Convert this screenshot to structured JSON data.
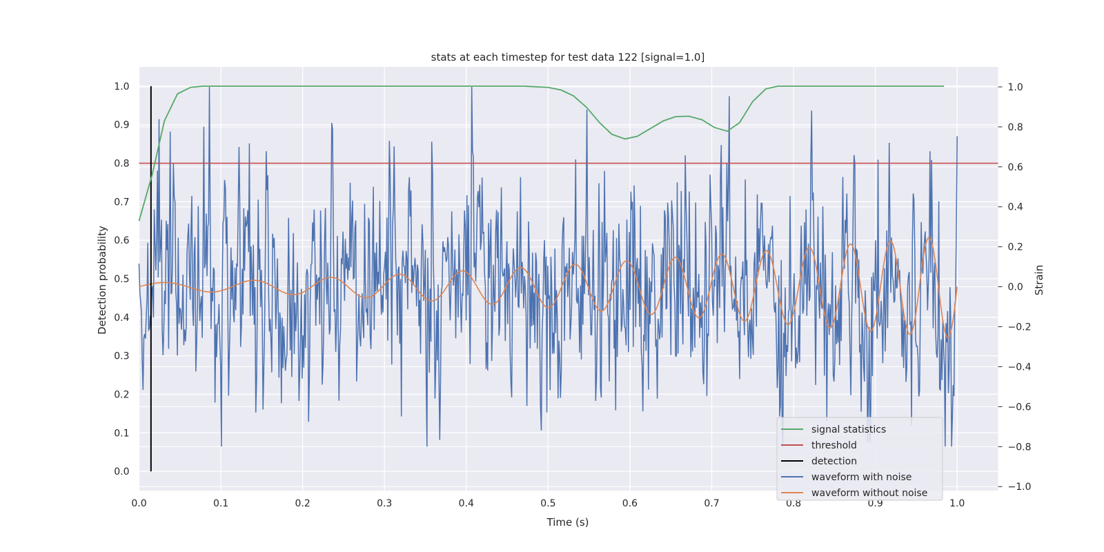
{
  "chart_data": {
    "type": "line",
    "title": "stats at each timestep for test data 122 [signal=1.0]",
    "xlabel": "Time (s)",
    "ylabel_left": "Detection probability",
    "ylabel_right": "Strain",
    "xlim": [
      0.0,
      1.05
    ],
    "ylim_left": [
      -0.05,
      1.05
    ],
    "ylim_right": [
      -1.02,
      1.1
    ],
    "x_ticks": [
      "0.0",
      "0.1",
      "0.2",
      "0.3",
      "0.4",
      "0.5",
      "0.6",
      "0.7",
      "0.8",
      "0.9",
      "1.0"
    ],
    "y_left_ticks": [
      "0.0",
      "0.1",
      "0.2",
      "0.3",
      "0.4",
      "0.5",
      "0.6",
      "0.7",
      "0.8",
      "0.9",
      "1.0"
    ],
    "y_right_ticks": [
      "−1.0",
      "−0.8",
      "−0.6",
      "−0.4",
      "−0.2",
      "0.0",
      "0.2",
      "0.4",
      "0.6",
      "0.8",
      "1.0"
    ],
    "grid": true,
    "legend_position": "lower-right",
    "colors": {
      "background": "#eaeaf2",
      "grid": "#ffffff",
      "signal_statistics": "#55a868",
      "threshold": "#c44e52",
      "detection": "#000000",
      "waveform_with_noise": "#4c72b0",
      "waveform_without_noise": "#dd8452"
    },
    "series": [
      {
        "name": "signal statistics",
        "axis": "left",
        "x": [
          0.0,
          0.016,
          0.031,
          0.047,
          0.063,
          0.078,
          0.094,
          0.25,
          0.47,
          0.5,
          0.516,
          0.531,
          0.547,
          0.563,
          0.578,
          0.594,
          0.609,
          0.625,
          0.641,
          0.656,
          0.672,
          0.688,
          0.703,
          0.719,
          0.734,
          0.75,
          0.766,
          0.781,
          0.797,
          0.984
        ],
        "y": [
          0.65,
          0.77,
          0.91,
          0.98,
          0.997,
          1.0,
          1.0,
          1.0,
          1.0,
          0.997,
          0.99,
          0.975,
          0.945,
          0.905,
          0.875,
          0.863,
          0.87,
          0.89,
          0.91,
          0.921,
          0.922,
          0.913,
          0.893,
          0.883,
          0.905,
          0.96,
          0.993,
          1.0,
          1.0,
          1.0
        ]
      },
      {
        "name": "threshold",
        "axis": "left",
        "x": [
          0.0,
          1.05
        ],
        "y": [
          0.8,
          0.8
        ]
      },
      {
        "name": "detection",
        "axis": "left",
        "x": [
          0.0146,
          0.0146
        ],
        "y": [
          0.0,
          1.0
        ]
      },
      {
        "name": "waveform with noise",
        "axis": "right",
        "x_range": [
          0.0,
          1.0
        ],
        "samples": 1024,
        "description_free_values": "noise trace; approx. range -0.8 to 1.0"
      },
      {
        "name": "waveform without noise",
        "axis": "right",
        "x_range": [
          0.0,
          1.0
        ],
        "samples": 512,
        "chirp": {
          "amp_start": 0.02,
          "amp_end": 0.26,
          "freq_start_hz": 8.0,
          "freq_end_hz": 22.0
        }
      }
    ]
  }
}
